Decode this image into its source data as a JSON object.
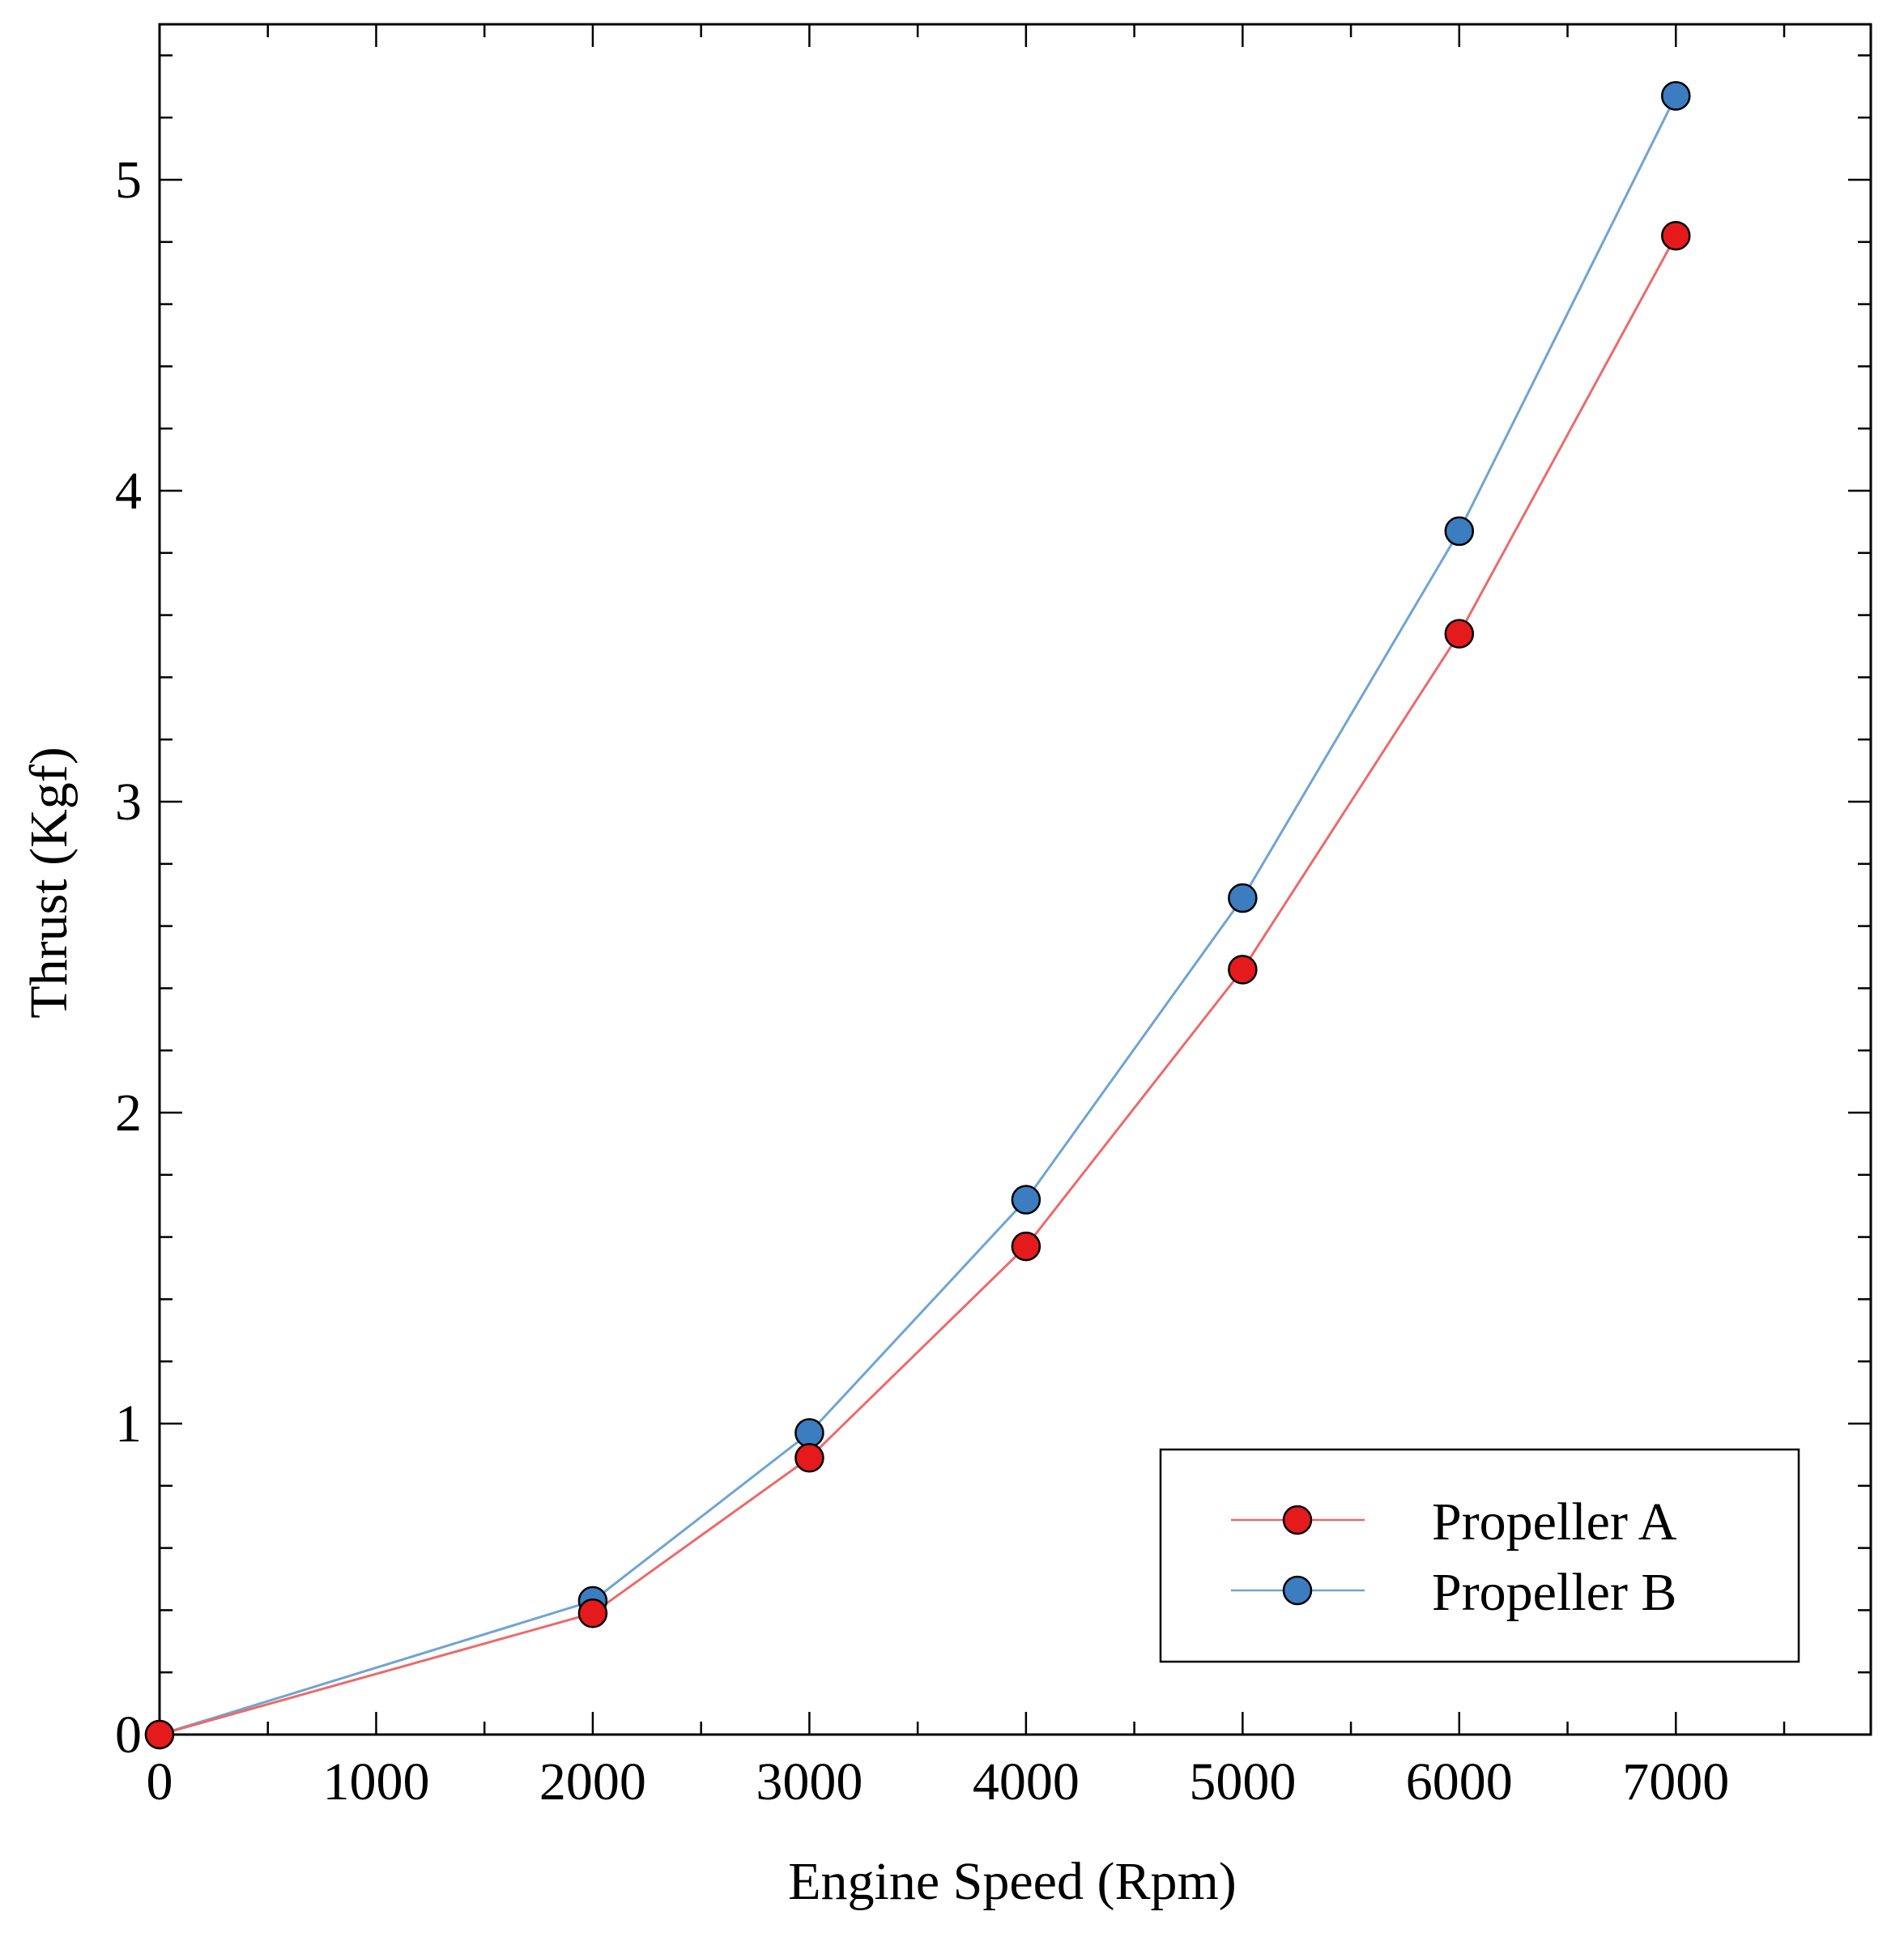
{
  "chart_data": {
    "type": "line",
    "title": "",
    "xlabel": "Engine Speed (Rpm)",
    "ylabel": "Thrust (Kgf)",
    "xlim": [
      0,
      7900
    ],
    "ylim": [
      0,
      5.5
    ],
    "xticks": [
      0,
      1000,
      2000,
      3000,
      4000,
      5000,
      6000,
      7000
    ],
    "xtick_labels": [
      "0",
      "1000",
      "2000",
      "3000",
      "4000",
      "5000",
      "6000",
      "7000"
    ],
    "yticks": [
      0,
      1,
      2,
      3,
      4,
      5
    ],
    "ytick_labels": [
      "0",
      "1",
      "2",
      "3",
      "4",
      "5"
    ],
    "x_minor_step": 500,
    "y_minor_step": 0.2,
    "grid": false,
    "legend_position": "bottom-right",
    "x": [
      0,
      2000,
      3000,
      4000,
      5000,
      6000,
      7000
    ],
    "series": [
      {
        "name": "Propeller A",
        "color": "#e41a1c",
        "line_color": "#ec6a6a",
        "values": [
          0,
          0.39,
          0.89,
          1.57,
          2.46,
          3.54,
          4.82
        ]
      },
      {
        "name": "Propeller B",
        "color": "#3b7dc0",
        "line_color": "#6fa4d4",
        "values": [
          0,
          0.43,
          0.97,
          1.72,
          2.69,
          3.87,
          5.27
        ]
      }
    ]
  }
}
